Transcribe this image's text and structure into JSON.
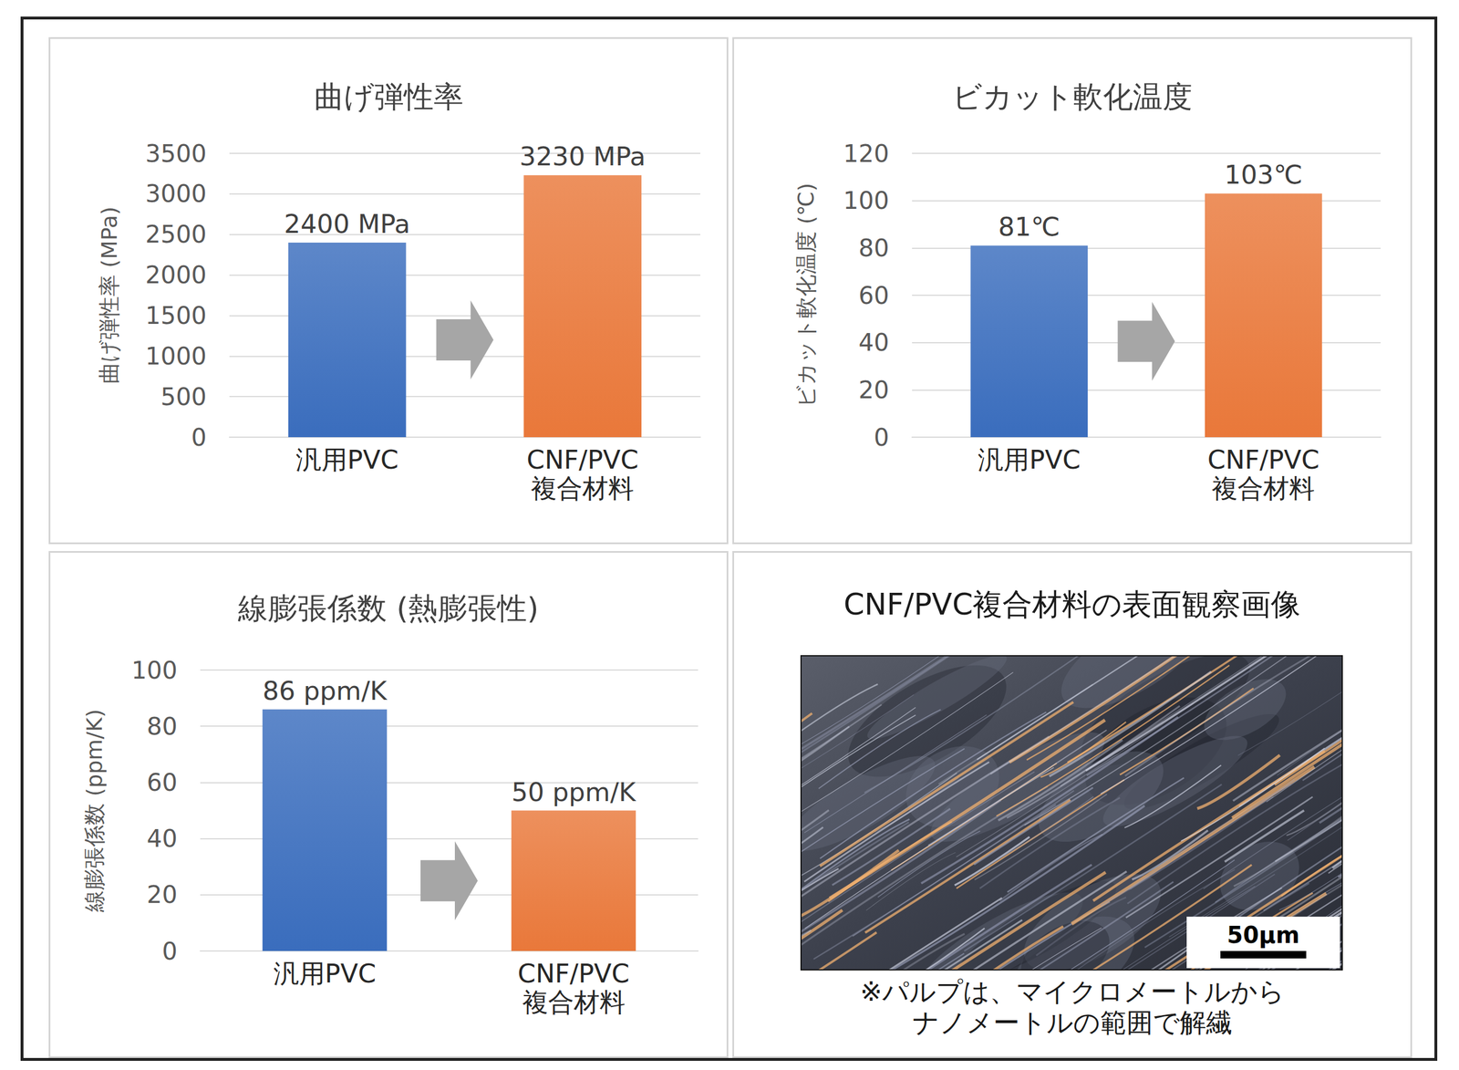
{
  "chart_data": [
    {
      "type": "bar",
      "title": "曲げ弾性率",
      "ylabel": "曲げ弾性率 (MPa)",
      "categories": [
        "汎用PVC",
        "CNF/PVC\n複合材料"
      ],
      "values": [
        2400,
        3230
      ],
      "value_labels": [
        "2400 MPa",
        "3230 MPa"
      ],
      "colors": [
        "#3a6dbd",
        "#e9783a"
      ],
      "ylim": [
        0,
        3500
      ],
      "yticks": [
        0,
        500,
        1000,
        1500,
        2000,
        2500,
        3000,
        3500
      ],
      "grid": true,
      "data_labels": true
    },
    {
      "type": "bar",
      "title": "ビカット軟化温度",
      "ylabel": "ビカット軟化温度 (℃)",
      "categories": [
        "汎用PVC",
        "CNF/PVC\n複合材料"
      ],
      "values": [
        81,
        103
      ],
      "value_labels": [
        "81℃",
        "103℃"
      ],
      "colors": [
        "#3a6dbd",
        "#e9783a"
      ],
      "ylim": [
        0,
        120
      ],
      "yticks": [
        0,
        20,
        40,
        60,
        80,
        100,
        120
      ],
      "grid": true,
      "data_labels": true
    },
    {
      "type": "bar",
      "title": "線膨張係数 (熱膨張性)",
      "ylabel": "線膨張係数 (ppm/K)",
      "categories": [
        "汎用PVC",
        "CNF/PVC\n複合材料"
      ],
      "values": [
        86,
        50
      ],
      "value_labels": [
        "86 ppm/K",
        "50 ppm/K"
      ],
      "colors": [
        "#3a6dbd",
        "#e9783a"
      ],
      "ylim": [
        0,
        100
      ],
      "yticks": [
        0,
        20,
        40,
        60,
        80,
        100
      ],
      "grid": true,
      "data_labels": true
    }
  ],
  "image_panel": {
    "title": "CNF/PVC複合材料の表面観察画像",
    "scale_bar": "50μm",
    "note": "※パルプは、マイクロメートルから\nナノメートルの範囲で解繊"
  }
}
